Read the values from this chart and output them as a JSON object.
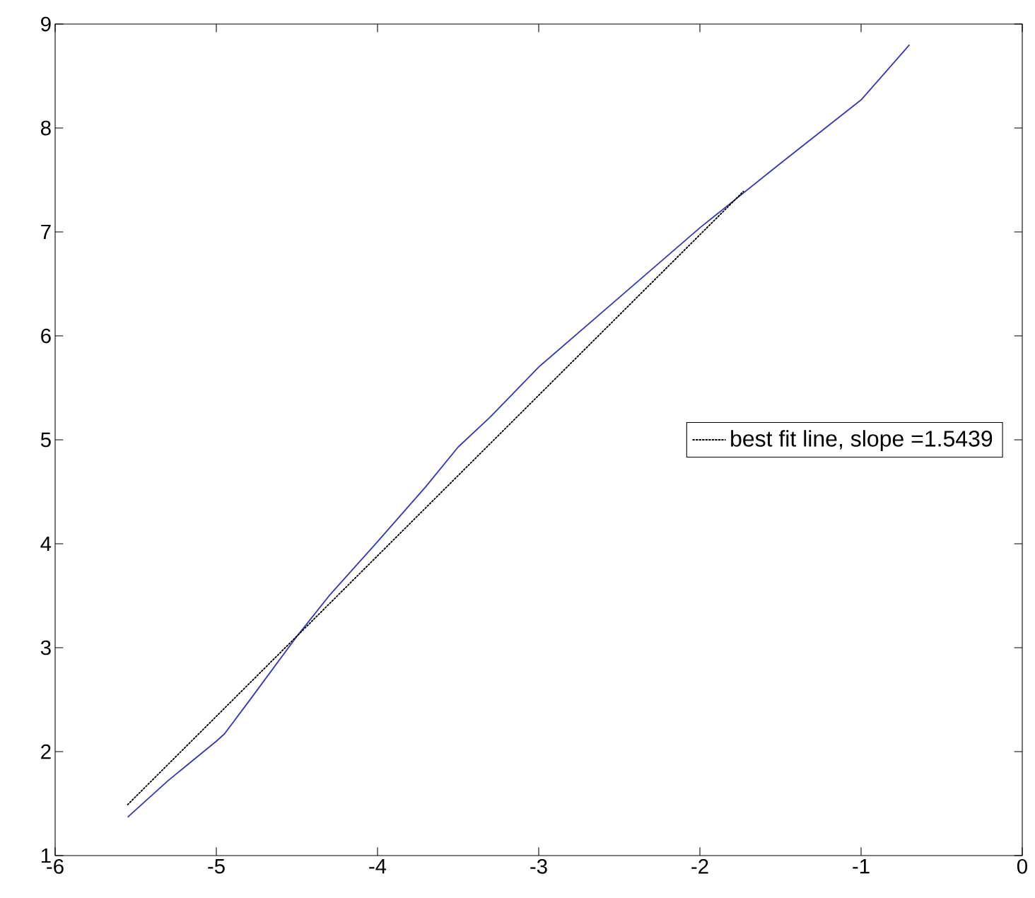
{
  "chart_data": {
    "type": "line",
    "xlim": [
      -6,
      0
    ],
    "ylim": [
      1,
      9
    ],
    "xticks": [
      -6,
      -5,
      -4,
      -3,
      -2,
      -1,
      0
    ],
    "yticks": [
      1,
      2,
      3,
      4,
      5,
      6,
      7,
      8,
      9
    ],
    "grid": false,
    "legend": "right",
    "series": [
      {
        "color": "#3a3aa8",
        "line_style": "solid",
        "x": [
          -5.55,
          -5.3,
          -5.0,
          -4.95,
          -4.8,
          -4.5,
          -4.3,
          -4.0,
          -3.7,
          -3.5,
          -3.3,
          -3.0,
          -2.5,
          -2.0,
          -1.5,
          -1.0,
          -0.7
        ],
        "values": [
          1.37,
          1.72,
          2.1,
          2.17,
          2.48,
          3.11,
          3.5,
          4.02,
          4.55,
          4.93,
          5.22,
          5.7,
          6.37,
          7.04,
          7.66,
          8.27,
          8.8
        ]
      },
      {
        "name": "best fit line, slope =1.5439",
        "color": "#000000",
        "line_style": "dotted",
        "x": [
          -5.55,
          -1.73
        ],
        "values": [
          1.49,
          7.39
        ]
      }
    ]
  }
}
